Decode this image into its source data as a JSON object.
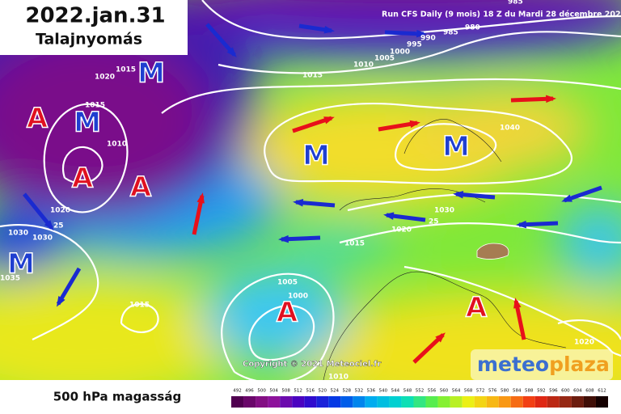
{
  "header": {
    "title": "2022.jan.31",
    "subtitle": "Talajnyomás"
  },
  "run_info": "Run CFS Daily (9 mois) 18 Z du Mardi 28 décembre 202",
  "copyright": "Copyright © 2021 Meteociel.fr",
  "logo": {
    "part1": "meteo",
    "part2": "plaza"
  },
  "footer": {
    "label": "500 hPa magasság",
    "scale": [
      492,
      496,
      500,
      504,
      508,
      512,
      516,
      520,
      524,
      528,
      532,
      536,
      540,
      544,
      548,
      552,
      556,
      560,
      564,
      568,
      572,
      576,
      580,
      584,
      588,
      592,
      596,
      600,
      604,
      608,
      612
    ]
  },
  "isobars": [
    985,
    980,
    985,
    990,
    995,
    1000,
    1005,
    1010,
    1015,
    1020,
    1015,
    1015,
    1010,
    1020,
    25,
    1030,
    1030,
    1035,
    1015,
    1005,
    1000,
    1010,
    1015,
    1020,
    25,
    1030,
    1040,
    1020
  ],
  "systems": [
    "M",
    "A",
    "M",
    "A",
    "A",
    "M",
    "M",
    "M",
    "A",
    "A"
  ]
}
